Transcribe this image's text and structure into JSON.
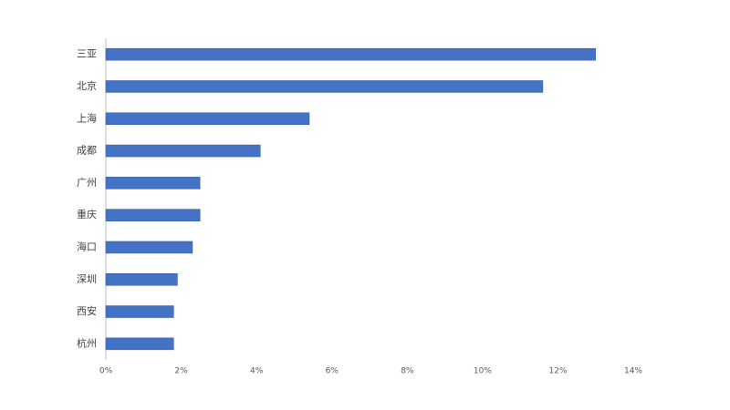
{
  "chart_data": {
    "type": "bar",
    "orientation": "horizontal",
    "categories": [
      "三亚",
      "北京",
      "上海",
      "成都",
      "广州",
      "重庆",
      "海口",
      "深圳",
      "西安",
      "杭州"
    ],
    "values": [
      13.0,
      11.6,
      5.4,
      4.1,
      2.5,
      2.5,
      2.3,
      1.9,
      1.8,
      1.8
    ],
    "color": "#4472c4",
    "xlim": [
      0,
      14
    ],
    "xticks": [
      {
        "value": 0,
        "label": "0%"
      },
      {
        "value": 2,
        "label": "2%"
      },
      {
        "value": 4,
        "label": "4%"
      },
      {
        "value": 6,
        "label": "6%"
      },
      {
        "value": 8,
        "label": "8%"
      },
      {
        "value": 10,
        "label": "10%"
      },
      {
        "value": 12,
        "label": "12%"
      },
      {
        "value": 14,
        "label": "14%"
      }
    ],
    "grid": false
  }
}
